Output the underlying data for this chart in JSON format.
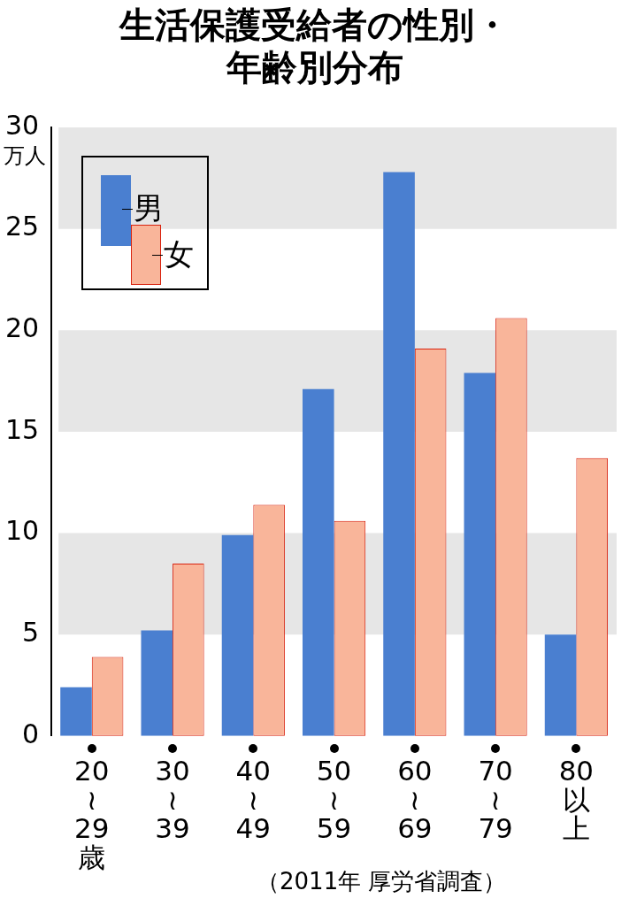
{
  "chart_data": {
    "type": "bar",
    "title": "生活保護受給者の性別・年齢別分布",
    "ylabel": "万人",
    "categories": [
      "20≀29歳",
      "30≀39",
      "40≀49",
      "50≀59",
      "60≀69",
      "70≀79",
      "80以上"
    ],
    "series": [
      {
        "name": "男",
        "color": "#4a7fd0",
        "values": [
          2.4,
          5.2,
          9.9,
          17.1,
          27.8,
          17.9,
          5.0
        ]
      },
      {
        "name": "女",
        "color": "#f9b59a",
        "values": [
          3.9,
          8.5,
          11.4,
          10.6,
          19.1,
          20.6,
          13.7
        ]
      }
    ],
    "ylim": [
      0,
      30
    ],
    "yticks": [
      0,
      5,
      10,
      15,
      20,
      25,
      30
    ],
    "legend": "top left",
    "bands": [
      {
        "axis": "y",
        "from": 5,
        "to": 10,
        "color": "#e6e6e6"
      },
      {
        "axis": "y",
        "from": 15,
        "to": 20,
        "color": "#e6e6e6"
      },
      {
        "axis": "y",
        "from": 25,
        "to": 30,
        "color": "#e6e6e6"
      }
    ],
    "annotations": [
      "（2011年 厚労省調査）"
    ]
  }
}
